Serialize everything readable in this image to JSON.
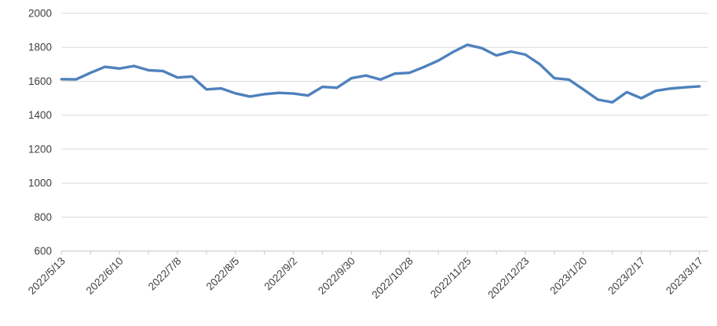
{
  "chart_data": {
    "type": "line",
    "title": "",
    "xlabel": "",
    "ylabel": "",
    "legend": "none",
    "grid": "horizontal",
    "x_tick_labels": [
      "2022/5/13",
      "2022/6/10",
      "2022/7/8",
      "2022/8/5",
      "2022/9/2",
      "2022/9/30",
      "2022/10/28",
      "2022/11/25",
      "2022/12/23",
      "2023/1/20",
      "2023/2/17",
      "2023/3/17"
    ],
    "x_tick_label_rotation_deg": 45,
    "label_every_n_points": 4,
    "minor_tick_every_n_points": 2,
    "values": [
      1612,
      1611,
      1650,
      1685,
      1675,
      1690,
      1665,
      1660,
      1622,
      1628,
      1552,
      1558,
      1529,
      1510,
      1524,
      1532,
      1528,
      1516,
      1567,
      1562,
      1618,
      1634,
      1610,
      1645,
      1650,
      1684,
      1722,
      1772,
      1815,
      1795,
      1752,
      1775,
      1757,
      1700,
      1618,
      1610,
      1552,
      1492,
      1476,
      1536,
      1500,
      1544,
      1557,
      1564,
      1570
    ],
    "y_ticks": [
      600,
      800,
      1000,
      1200,
      1400,
      1600,
      1800,
      2000
    ],
    "ylim": [
      600,
      2000
    ],
    "series": [
      {
        "name": "",
        "color": "#4f81bd"
      }
    ]
  },
  "colors": {
    "background": "#ffffff",
    "gridline": "#d9d9d9",
    "axis_line": "#c6c6c6",
    "tick_mark": "#c6c6c6",
    "tick_label": "#3f3f3f",
    "series_line": "#4f81bd"
  }
}
